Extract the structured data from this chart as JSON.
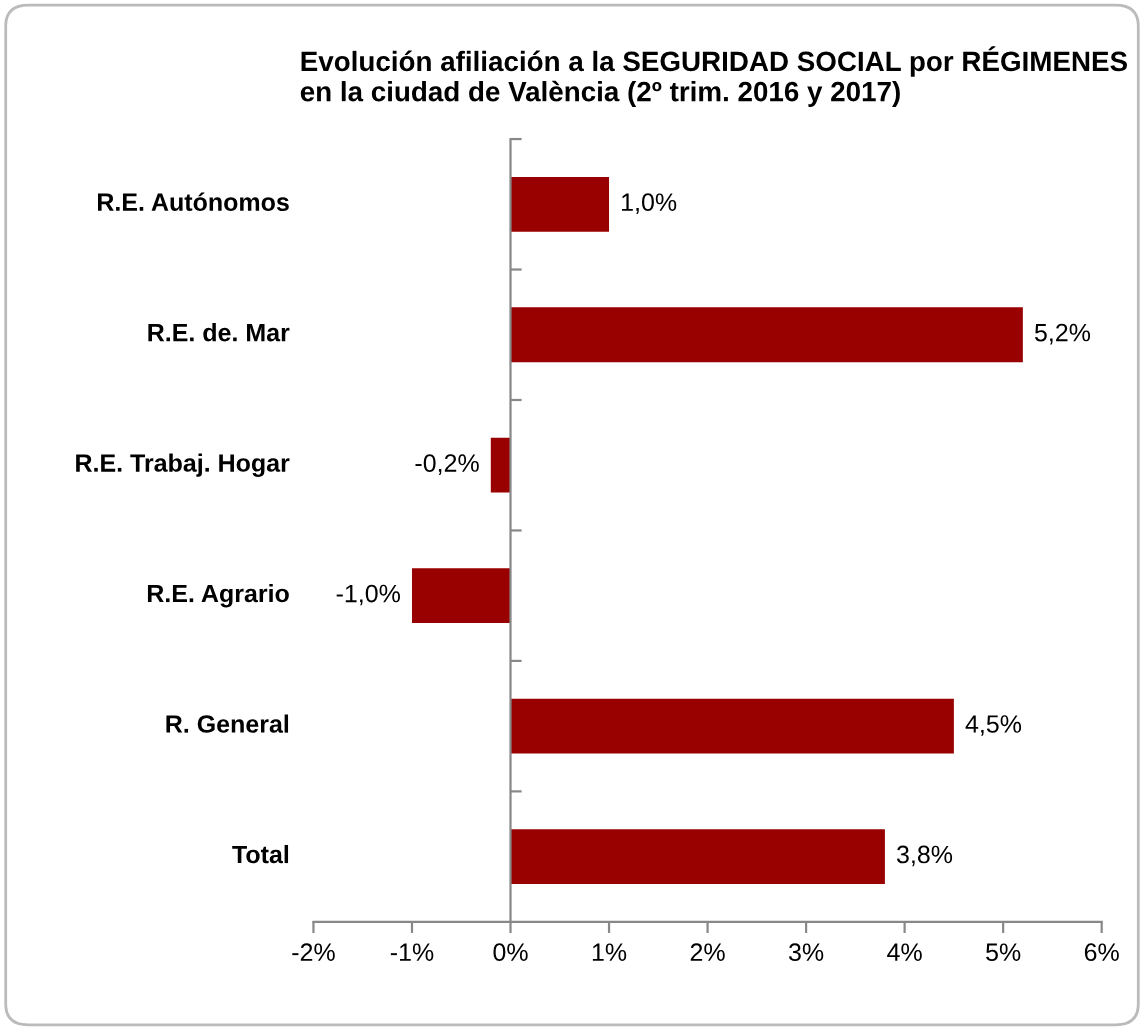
{
  "chart_data": {
    "type": "bar",
    "orientation": "horizontal",
    "title": "Evolución afiliación a la SEGURIDAD SOCIAL por RÉGIMENES en la ciudad de València (2º trim. 2016 y 2017)",
    "categories": [
      "R.E. Autónomos",
      "R.E. de. Mar",
      "R.E. Trabaj. Hogar",
      "R.E. Agrario",
      "R. General",
      "Total"
    ],
    "values": [
      1.0,
      5.2,
      -0.2,
      -1.0,
      4.5,
      3.8
    ],
    "value_labels": [
      "1,0%",
      "5,2%",
      "-0,2%",
      "-1,0%",
      "4,5%",
      "3,8%"
    ],
    "color": "#990000",
    "xlim": [
      -2,
      6
    ],
    "xticks": [
      {
        "value": -2,
        "label": "-2%"
      },
      {
        "value": -1,
        "label": "-1%"
      },
      {
        "value": 0,
        "label": "0%"
      },
      {
        "value": 1,
        "label": "1%"
      },
      {
        "value": 2,
        "label": "2%"
      },
      {
        "value": 3,
        "label": "3%"
      },
      {
        "value": 4,
        "label": "4%"
      },
      {
        "value": 5,
        "label": "5%"
      },
      {
        "value": 6,
        "label": "6%"
      }
    ],
    "legend": false
  }
}
